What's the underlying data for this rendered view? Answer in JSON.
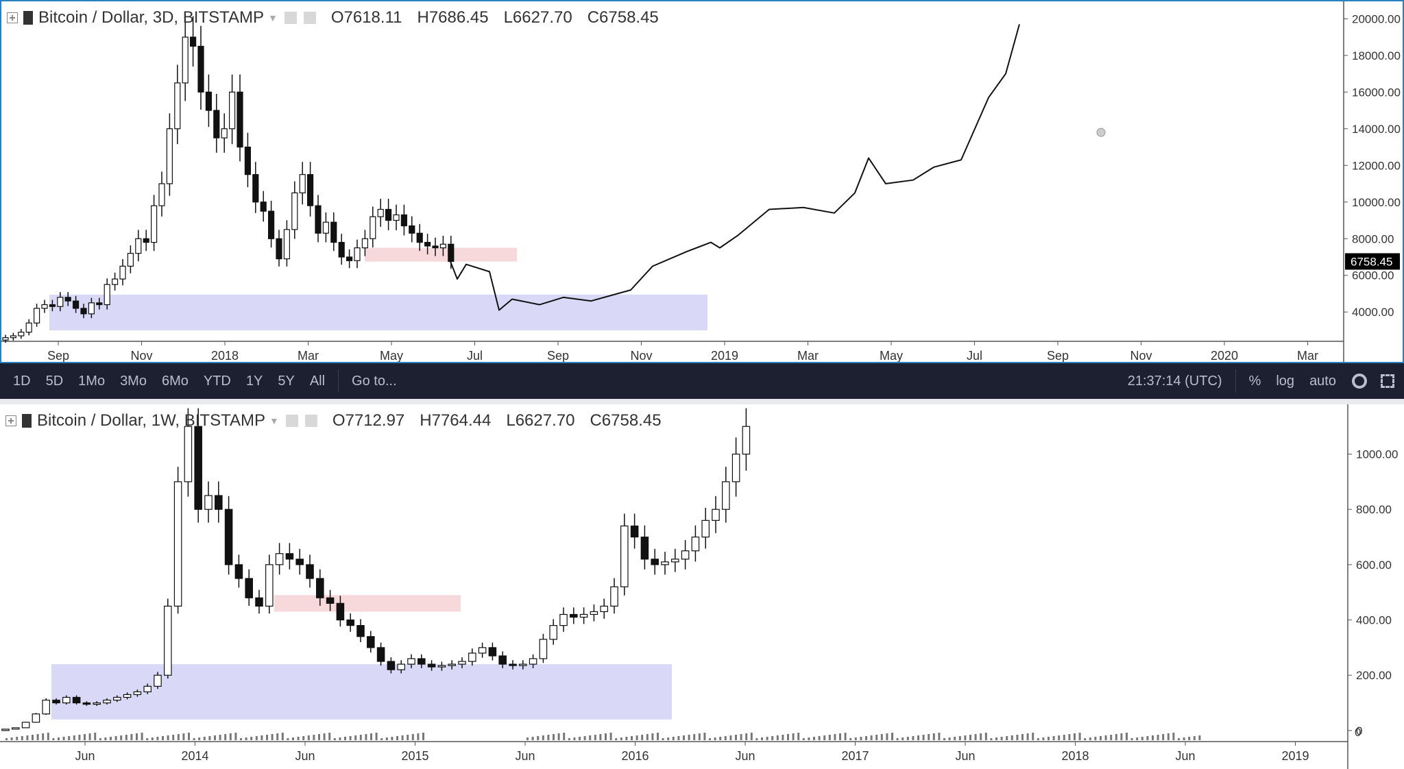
{
  "colors": {
    "up": "#ffffff",
    "down": "#111111",
    "zone_support": "#d9d9f7",
    "zone_resist": "#f7d9dc",
    "axis_text": "#333333",
    "price_tag_bg": "#000000"
  },
  "icons": {
    "pane_toggle": "plus-square-icon",
    "symbol_flag": "flag-icon",
    "dropdown": "caret-down-icon",
    "settings": "gear-icon",
    "fullscreen": "fullscreen-icon",
    "eye": "eye-icon"
  },
  "top_pane": {
    "legend": {
      "symbol": "Bitcoin / Dollar, 3D, BITSTAMP",
      "o": "O7618.11",
      "h": "H7686.45",
      "l": "L6627.70",
      "c": "C6758.45"
    },
    "price_tag": "6758.45"
  },
  "bottom_pane": {
    "legend": {
      "symbol": "Bitcoin / Dollar, 1W, BITSTAMP",
      "o": "O7712.97",
      "h": "H7764.44",
      "l": "L6627.70",
      "c": "C6758.45"
    }
  },
  "toolbar": {
    "ranges": [
      "1D",
      "5D",
      "1Mo",
      "3Mo",
      "6Mo",
      "YTD",
      "1Y",
      "5Y",
      "All"
    ],
    "goto": "Go to...",
    "clock": "21:37:14 (UTC)",
    "percent": "%",
    "log": "log",
    "auto": "auto"
  },
  "chart_data": [
    {
      "type": "candlestick",
      "series": [
        {
          "name": "Bitcoin / Dollar, 3D, BITSTAMP",
          "interval": "3D",
          "exchange": "BITSTAMP"
        }
      ],
      "ohlc_last": {
        "open": 7618.11,
        "high": 7686.45,
        "low": 6627.7,
        "close": 6758.45
      },
      "last_price": 6758.45,
      "y_ticks": [
        "4000.00",
        "6000.00",
        "8000.00",
        "10000.00",
        "12000.00",
        "14000.00",
        "16000.00",
        "18000.00",
        "20000.00"
      ],
      "ylim": [
        2400,
        20500
      ],
      "x_ticks": [
        "Sep",
        "Nov",
        "2018",
        "Mar",
        "May",
        "Jul",
        "Sep",
        "Nov",
        "2019",
        "Mar",
        "May",
        "Jul",
        "Sep",
        "Nov",
        "2020",
        "Mar"
      ],
      "closes_approx": [
        2600,
        2700,
        2900,
        3400,
        4200,
        4400,
        4300,
        4800,
        4600,
        4200,
        3900,
        4500,
        4400,
        5500,
        5800,
        6500,
        7200,
        8000,
        7800,
        9800,
        11000,
        14000,
        16500,
        19000,
        18500,
        16000,
        15000,
        13500,
        14000,
        16000,
        13000,
        11500,
        10000,
        9500,
        8000,
        6900,
        8500,
        10500,
        11500,
        9800,
        8300,
        8900,
        7800,
        7000,
        6800,
        7500,
        8000,
        9200,
        9600,
        9000,
        9300,
        8700,
        8300,
        7800,
        7600,
        7500,
        7700,
        6758
      ],
      "zones": [
        {
          "kind": "support",
          "y": [
            3000,
            4950
          ],
          "x_from": "Sep 2017",
          "x_to": "Dec 2018"
        },
        {
          "kind": "resistance",
          "y": [
            6750,
            7500
          ],
          "x_from": "Apr 2018",
          "x_to": "Jul 2018"
        }
      ],
      "projection_path": [
        [
          6758
        ],
        [
          5800
        ],
        [
          6600
        ],
        [
          4100
        ],
        [
          4800
        ],
        [
          4500
        ],
        [
          5200
        ],
        [
          6800
        ],
        [
          7800
        ],
        [
          7500
        ],
        [
          9600
        ],
        [
          9500
        ],
        [
          12400
        ],
        [
          11000
        ],
        [
          11800
        ],
        [
          16000
        ],
        [
          19800
        ]
      ]
    },
    {
      "type": "candlestick",
      "series": [
        {
          "name": "Bitcoin / Dollar, 1W, BITSTAMP",
          "interval": "1W",
          "exchange": "BITSTAMP"
        }
      ],
      "ohlc_last": {
        "open": 7712.97,
        "high": 7764.44,
        "low": 6627.7,
        "close": 6758.45
      },
      "y_ticks": [
        "0",
        "200.00",
        "400.00",
        "600.00",
        "800.00",
        "1000.00"
      ],
      "ylim": [
        -40,
        1160
      ],
      "x_ticks": [
        "Jun",
        "2014",
        "Jun",
        "2015",
        "Jun",
        "2016",
        "Jun",
        "2017",
        "Jun",
        "2018",
        "Jun",
        "2019"
      ],
      "closes_approx": [
        5,
        10,
        30,
        60,
        110,
        100,
        120,
        100,
        95,
        100,
        110,
        120,
        130,
        140,
        160,
        200,
        450,
        900,
        1100,
        800,
        850,
        800,
        600,
        550,
        480,
        450,
        600,
        640,
        620,
        600,
        550,
        480,
        460,
        400,
        380,
        340,
        300,
        250,
        220,
        240,
        260,
        240,
        230,
        235,
        240,
        250,
        280,
        300,
        270,
        240,
        235,
        240,
        260,
        330,
        380,
        420,
        410,
        420,
        430,
        450,
        520,
        740,
        700,
        620,
        600,
        610,
        620,
        650,
        700,
        760,
        800,
        900,
        1000,
        1100
      ],
      "zones": [
        {
          "kind": "support",
          "y": [
            40,
            240
          ],
          "x_from": "Apr 2013",
          "x_to": "Feb 2016"
        },
        {
          "kind": "resistance",
          "y": [
            430,
            490
          ],
          "x_from": "Apr 2014",
          "x_to": "Feb 2015"
        }
      ]
    }
  ]
}
